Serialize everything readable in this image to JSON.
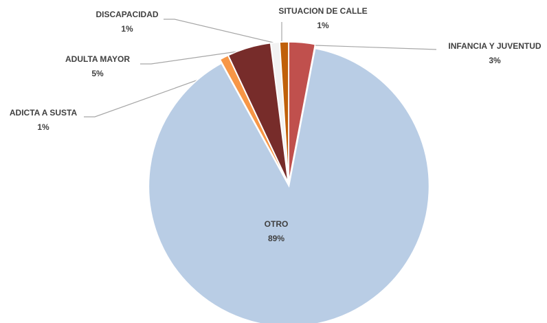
{
  "chart_data": {
    "type": "pie",
    "categories": [
      "INFANCIA Y JUVENTUD",
      "OTRO",
      "ADICTA A SUSTA",
      "ADULTA MAYOR",
      "DISCAPACIDAD",
      "SITUACION DE CALLE"
    ],
    "values": [
      3,
      89,
      1,
      5,
      1,
      1
    ],
    "value_labels": [
      "3%",
      "89%",
      "1%",
      "5%",
      "1%",
      "1%"
    ],
    "colors": [
      "#c0504d",
      "#b9cde5",
      "#f79646",
      "#772c2a",
      "#f2f2f2",
      "#c0600a"
    ]
  }
}
